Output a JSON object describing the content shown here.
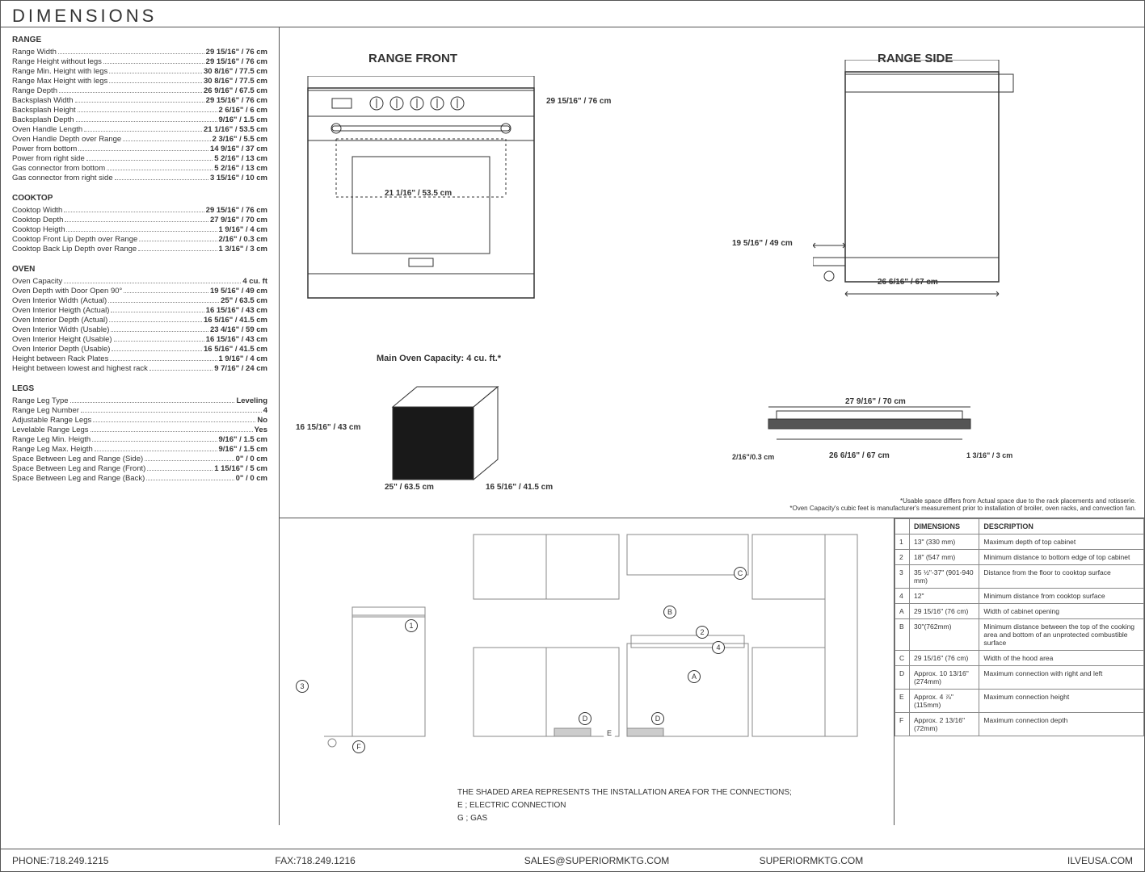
{
  "title": "DIMENSIONS",
  "sections": {
    "range": {
      "header": "RANGE",
      "rows": [
        {
          "label": "Range Width",
          "value": "29 15/16\" / 76 cm"
        },
        {
          "label": "Range Height without legs",
          "value": "29 15/16\" / 76 cm"
        },
        {
          "label": "Range Min. Height with legs",
          "value": "30 8/16\" / 77.5 cm"
        },
        {
          "label": "Range Max Height with legs",
          "value": "30 8/16\" / 77.5 cm"
        },
        {
          "label": "Range Depth",
          "value": "26 9/16\" / 67.5 cm"
        },
        {
          "label": "Backsplash Width",
          "value": "29 15/16\" / 76 cm"
        },
        {
          "label": "Backsplash Height",
          "value": "2 6/16\" / 6 cm"
        },
        {
          "label": "Backsplash Depth",
          "value": "9/16\" / 1.5 cm"
        },
        {
          "label": "Oven Handle Length",
          "value": "21 1/16\" / 53.5 cm"
        },
        {
          "label": "Oven Handle Depth over Range",
          "value": "2 3/16\" / 5.5 cm"
        },
        {
          "label": "Power from bottom",
          "value": "14 9/16\" / 37 cm"
        },
        {
          "label": "Power from right side",
          "value": "5 2/16\" / 13 cm"
        },
        {
          "label": "Gas connector from bottom",
          "value": "5 2/16\" / 13 cm"
        },
        {
          "label": "Gas connector from right side",
          "value": "3 15/16\" / 10 cm"
        }
      ]
    },
    "cooktop": {
      "header": "COOKTOP",
      "rows": [
        {
          "label": "Cooktop Width",
          "value": "29 15/16\" / 76 cm"
        },
        {
          "label": "Cooktop Depth",
          "value": "27 9/16\" / 70 cm"
        },
        {
          "label": "Cooktop Heigth",
          "value": "1 9/16\" / 4 cm"
        },
        {
          "label": "Cooktop Front Lip Depth over Range",
          "value": "2/16\" / 0.3 cm"
        },
        {
          "label": "Cooktop Back Lip Depth over Range",
          "value": "1 3/16\" / 3 cm"
        }
      ]
    },
    "oven": {
      "header": "OVEN",
      "rows": [
        {
          "label": "Oven Capacity",
          "value": "4 cu. ft"
        },
        {
          "label": "Oven Depth with Door Open 90°",
          "value": "19 5/16\" / 49 cm"
        },
        {
          "label": "Oven Interior Width (Actual)",
          "value": "25\" / 63.5 cm"
        },
        {
          "label": "Oven Interior Heigth (Actual)",
          "value": "16 15/16\" / 43 cm"
        },
        {
          "label": "Oven Interior Depth (Actual)",
          "value": "16 5/16\" / 41.5 cm"
        },
        {
          "label": "Oven Interior Width (Usable)",
          "value": "23 4/16\" / 59 cm"
        },
        {
          "label": "Oven Interior Height (Usable)",
          "value": "16 15/16\" / 43 cm"
        },
        {
          "label": "Oven Interior Depth (Usable)",
          "value": "16 5/16\" / 41.5 cm"
        },
        {
          "label": "Height between Rack Plates",
          "value": "1 9/16\" / 4 cm"
        },
        {
          "label": "Height between lowest and highest rack",
          "value": "9 7/16\" / 24 cm"
        }
      ]
    },
    "legs": {
      "header": "LEGS",
      "rows": [
        {
          "label": "Range Leg Type",
          "value": "Leveling"
        },
        {
          "label": "Range Leg Number",
          "value": "4"
        },
        {
          "label": "Adjustable Range Legs",
          "value": "No"
        },
        {
          "label": "Levelable Range Legs",
          "value": "Yes"
        },
        {
          "label": "Range Leg Min. Heigth",
          "value": "9/16\" / 1.5 cm"
        },
        {
          "label": "Range Leg Max. Heigth",
          "value": "9/16\" / 1.5 cm"
        },
        {
          "label": "Space Between Leg and Range (Side)",
          "value": "0\" / 0 cm"
        },
        {
          "label": "Space Between Leg and Range (Front)",
          "value": "1 15/16\" / 5 cm"
        },
        {
          "label": "Space Between Leg and Range (Back)",
          "value": "0\" / 0 cm"
        }
      ]
    }
  },
  "diagrams": {
    "front_label": "RANGE FRONT",
    "side_label": "RANGE SIDE",
    "oven_cap": "Main Oven Capacity: 4 cu. ft.*",
    "front_height": "29 15/16\" / 76 cm",
    "handle_length": "21 1/16\" / 53.5 cm",
    "side_door_depth": "19 5/16\" / 49 cm",
    "side_depth": "26 6/16\" / 67 cm",
    "cube_h": "16 15/16\" / 43 cm",
    "cube_w": "25\" / 63.5 cm",
    "cube_d": "16 5/16\" / 41.5 cm",
    "cook_w": "27 9/16\" / 70 cm",
    "cook_inner": "26 6/16\" / 67 cm",
    "cook_lip": "2/16\"/0.3 cm",
    "cook_back": "1 3/16\" / 3 cm"
  },
  "install_table": {
    "headers": [
      "DIMENSIONS",
      "DESCRIPTION"
    ],
    "rows": [
      {
        "k": "1",
        "dim": "13\" (330 mm)",
        "desc": "Maximum depth of top cabinet"
      },
      {
        "k": "2",
        "dim": "18\" (547 mm)",
        "desc": "Minimum distance to bottom edge of top cabinet"
      },
      {
        "k": "3",
        "dim": "35 ½\"-37\" (901-940 mm)",
        "desc": "Distance from the floor to cooktop surface"
      },
      {
        "k": "4",
        "dim": "12\"",
        "desc": "Minimum distance from cooktop surface"
      },
      {
        "k": "A",
        "dim": "29 15/16\" (76 cm)",
        "desc": "Width of cabinet opening"
      },
      {
        "k": "B",
        "dim": "30\"(762mm)",
        "desc": "Minimum distance between the top of the cooking area and bottom of an unprotected combustible surface"
      },
      {
        "k": "C",
        "dim": "29 15/16\" (76 cm)",
        "desc": "Width of the hood area"
      },
      {
        "k": "D",
        "dim": "Approx. 10 13/16\" (274mm)",
        "desc": "Maximum connection with right and left"
      },
      {
        "k": "E",
        "dim": "Approx. 4 ⅞\" (115mm)",
        "desc": "Maximum connection height"
      },
      {
        "k": "F",
        "dim": "Approx. 2 13/16\" (72mm)",
        "desc": "Maximum connection depth"
      }
    ]
  },
  "install_notes": {
    "line1": "THE SHADED AREA REPRESENTS THE INSTALLATION AREA FOR THE CONNECTIONS;",
    "line2": "E ; ELECTRIC CONNECTION",
    "line3": "G ; GAS"
  },
  "disclaimer": {
    "l1": "*Usable space differs from Actual space due to the rack placements and rotisserie.",
    "l2": "*Oven Capacity's cubic feet is manufacturer's measurement prior to installation of broiler, oven racks, and convection fan."
  },
  "footer": {
    "phone": "PHONE:718.249.1215",
    "fax": "FAX:718.249.1216",
    "email": "SALES@SUPERIORMKTG.COM",
    "web1": "SUPERIORMKTG.COM",
    "web2": "ILVEUSA.COM"
  }
}
